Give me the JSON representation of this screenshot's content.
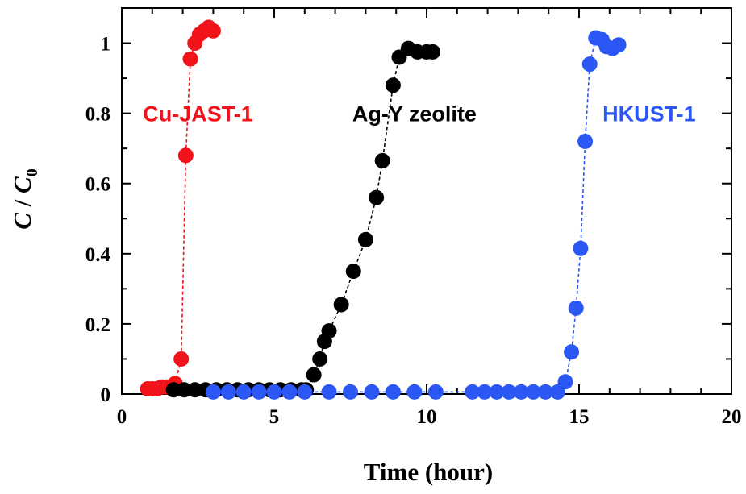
{
  "chart_data": {
    "type": "scatter",
    "xlabel": "Time (hour)",
    "ylabel_main": "C",
    "ylabel_sep": " / ",
    "ylabel_sub_base": "C",
    "ylabel_sub": "0",
    "xlim": [
      0,
      20
    ],
    "ylim": [
      0,
      1.1
    ],
    "x_ticks": [
      0,
      5,
      10,
      15,
      20
    ],
    "x_tick_labels": [
      "0",
      "5",
      "10",
      "15",
      "20"
    ],
    "y_ticks": [
      0,
      0.2,
      0.4,
      0.6,
      0.8,
      1
    ],
    "y_tick_labels": [
      "0",
      "0.2",
      "0.4",
      "0.6",
      "0.8",
      "1"
    ],
    "grid": false,
    "connected": "dashed",
    "series": [
      {
        "name": "Cu-JAST-1",
        "color": "#f0131a",
        "points": [
          [
            0.85,
            0.015
          ],
          [
            1.0,
            0.015
          ],
          [
            1.15,
            0.015
          ],
          [
            1.3,
            0.02
          ],
          [
            1.5,
            0.02
          ],
          [
            1.7,
            0.025
          ],
          [
            1.75,
            0.03
          ],
          [
            1.95,
            0.1
          ],
          [
            2.1,
            0.68
          ],
          [
            2.25,
            0.955
          ],
          [
            2.4,
            1.0
          ],
          [
            2.55,
            1.025
          ],
          [
            2.7,
            1.035
          ],
          [
            2.85,
            1.045
          ],
          [
            3.0,
            1.035
          ]
        ]
      },
      {
        "name": "Ag-Y zeolite",
        "color": "#000000",
        "points": [
          [
            1.7,
            0.012
          ],
          [
            2.05,
            0.012
          ],
          [
            2.4,
            0.012
          ],
          [
            2.75,
            0.012
          ],
          [
            3.1,
            0.012
          ],
          [
            3.45,
            0.012
          ],
          [
            3.8,
            0.012
          ],
          [
            4.15,
            0.012
          ],
          [
            4.5,
            0.012
          ],
          [
            4.85,
            0.012
          ],
          [
            5.2,
            0.012
          ],
          [
            5.55,
            0.012
          ],
          [
            5.9,
            0.012
          ],
          [
            6.05,
            0.012
          ],
          [
            6.3,
            0.055
          ],
          [
            6.5,
            0.1
          ],
          [
            6.65,
            0.15
          ],
          [
            6.8,
            0.18
          ],
          [
            7.2,
            0.255
          ],
          [
            7.6,
            0.35
          ],
          [
            8.0,
            0.44
          ],
          [
            8.35,
            0.56
          ],
          [
            8.55,
            0.665
          ],
          [
            8.9,
            0.88
          ],
          [
            9.1,
            0.96
          ],
          [
            9.4,
            0.985
          ],
          [
            9.7,
            0.975
          ],
          [
            10.0,
            0.975
          ],
          [
            10.2,
            0.975
          ]
        ]
      },
      {
        "name": "HKUST-1",
        "color": "#2b57f5",
        "points": [
          [
            3.0,
            0.006
          ],
          [
            3.5,
            0.006
          ],
          [
            4.0,
            0.006
          ],
          [
            4.5,
            0.006
          ],
          [
            5.0,
            0.006
          ],
          [
            5.5,
            0.006
          ],
          [
            6.0,
            0.006
          ],
          [
            6.8,
            0.006
          ],
          [
            7.5,
            0.006
          ],
          [
            8.2,
            0.006
          ],
          [
            8.9,
            0.006
          ],
          [
            9.6,
            0.006
          ],
          [
            10.3,
            0.006
          ],
          [
            11.5,
            0.006
          ],
          [
            11.9,
            0.006
          ],
          [
            12.3,
            0.006
          ],
          [
            12.7,
            0.006
          ],
          [
            13.1,
            0.006
          ],
          [
            13.5,
            0.006
          ],
          [
            13.9,
            0.006
          ],
          [
            14.3,
            0.006
          ],
          [
            14.55,
            0.035
          ],
          [
            14.75,
            0.12
          ],
          [
            14.9,
            0.245
          ],
          [
            15.05,
            0.415
          ],
          [
            15.2,
            0.72
          ],
          [
            15.35,
            0.94
          ],
          [
            15.55,
            1.015
          ],
          [
            15.75,
            1.01
          ],
          [
            15.9,
            0.99
          ],
          [
            16.1,
            0.985
          ],
          [
            16.3,
            0.995
          ]
        ]
      }
    ],
    "annotations": [
      {
        "text": "Cu-JAST-1",
        "color": "#f0131a",
        "x": 2.5,
        "y": 0.8
      },
      {
        "text": "Ag-Y zeolite",
        "color": "#000000",
        "x": 9.6,
        "y": 0.8
      },
      {
        "text": "HKUST-1",
        "color": "#2b57f5",
        "x": 17.3,
        "y": 0.8
      }
    ]
  }
}
